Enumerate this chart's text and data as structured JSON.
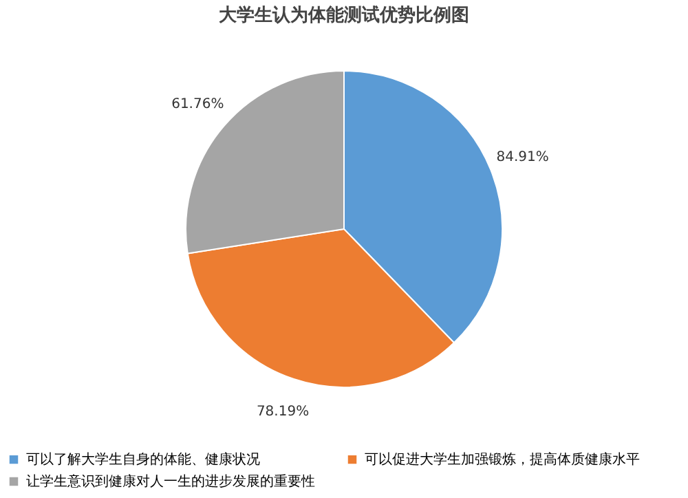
{
  "chart_data": {
    "type": "pie",
    "title": "大学生认为体能测试优势比例图",
    "categories": [
      "可以了解大学生自身的体能、健康状况",
      "可以促进大学生加强锻炼，提高体质健康水平",
      "让学生意识到健康对人一生的进步发展的重要性"
    ],
    "values": [
      84.91,
      78.19,
      61.76
    ],
    "colors": [
      "#5b9bd5",
      "#ed7d31",
      "#a5a5a5"
    ],
    "value_labels": [
      "84.91%",
      "78.19%",
      "61.76%"
    ],
    "legend": "bottom"
  }
}
